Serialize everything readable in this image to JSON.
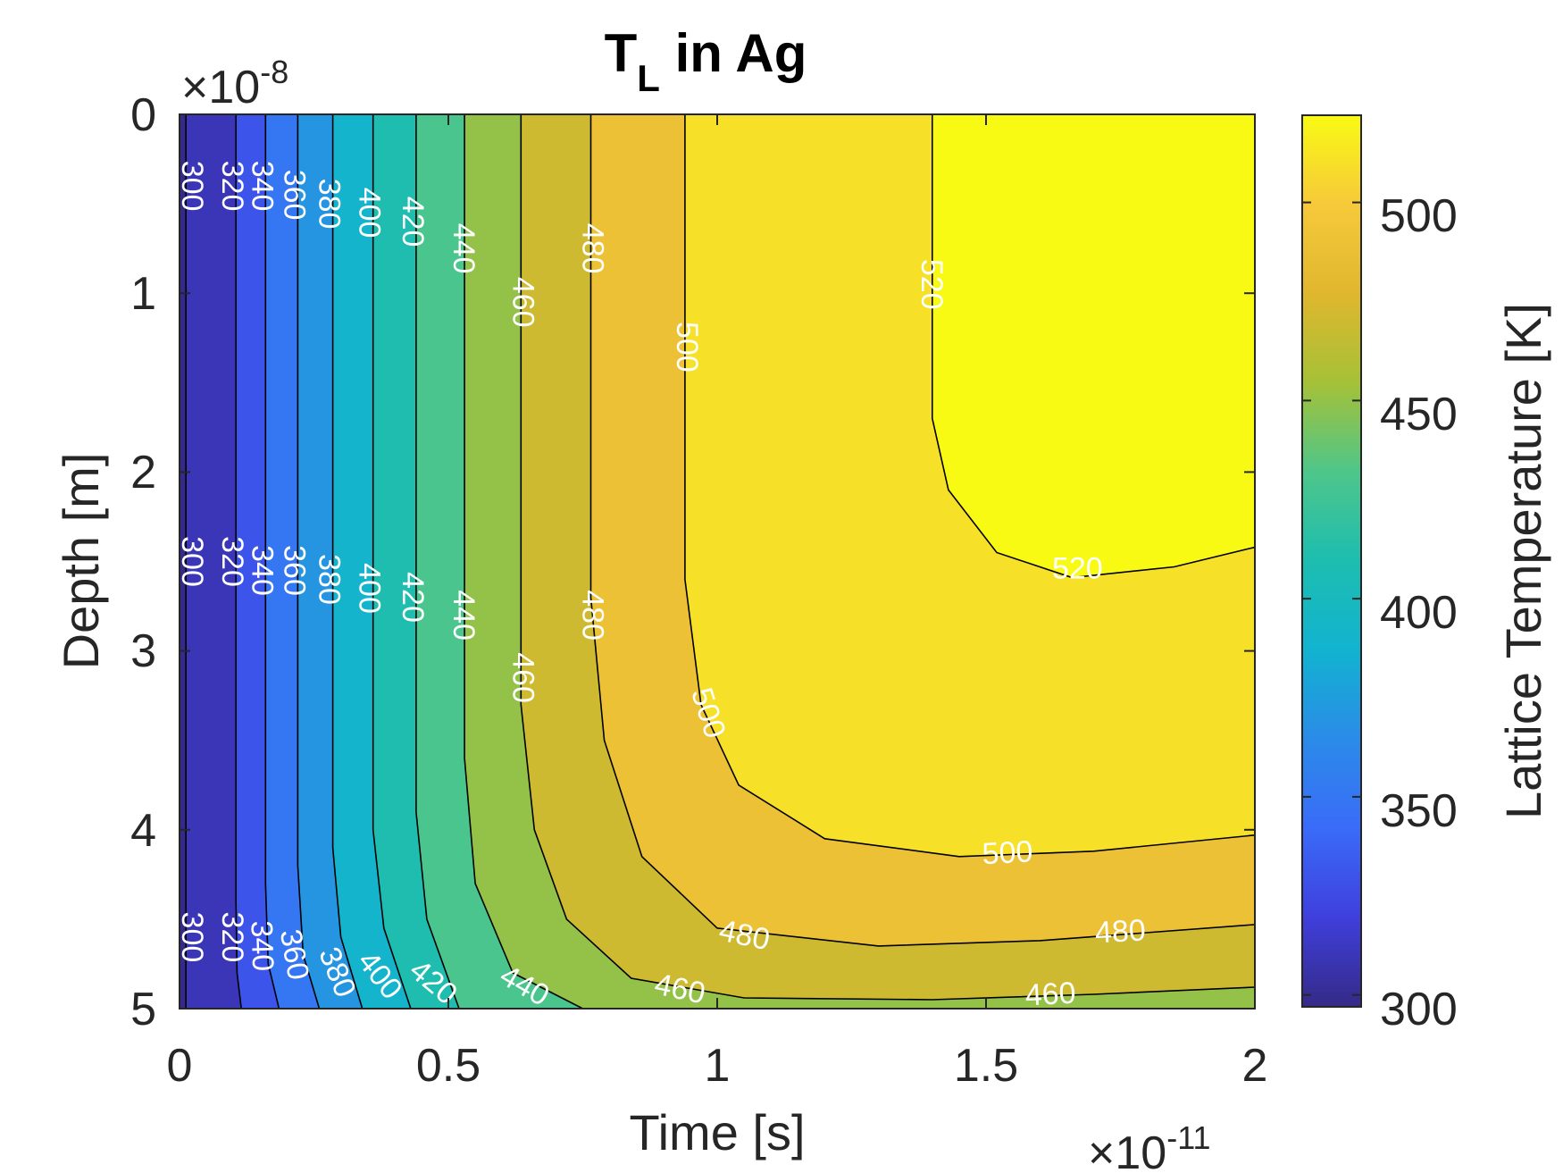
{
  "chart_data": {
    "type": "contour",
    "title": "T",
    "title_sub": "L",
    "title_rest": " in Ag",
    "xlabel": "Time [s]",
    "ylabel": "Depth [m]",
    "colorbar_label": "Lattice Temperature [K]",
    "x_multiplier": "×10",
    "x_exponent": "-11",
    "y_multiplier": "×10",
    "y_exponent": "-8",
    "xlim": [
      0,
      2
    ],
    "ylim": [
      0,
      5
    ],
    "y_reversed": true,
    "x_ticks": [
      "0",
      "0.5",
      "1",
      "1.5",
      "2"
    ],
    "y_ticks": [
      "0",
      "1",
      "2",
      "3",
      "4",
      "5"
    ],
    "colorbar_range": [
      297,
      522
    ],
    "colorbar_ticks": [
      "300",
      "350",
      "400",
      "450",
      "500"
    ],
    "colormap": "parula",
    "levels": [
      300,
      320,
      340,
      360,
      380,
      400,
      420,
      440,
      460,
      480,
      500,
      520
    ],
    "contours": [
      {
        "level": 300,
        "points": [
          [
            0.012,
            0
          ],
          [
            0.012,
            5
          ]
        ]
      },
      {
        "level": 320,
        "points": [
          [
            0.105,
            0
          ],
          [
            0.105,
            4.4
          ],
          [
            0.107,
            4.8
          ],
          [
            0.115,
            5
          ]
        ]
      },
      {
        "level": 340,
        "points": [
          [
            0.16,
            0
          ],
          [
            0.16,
            4.3
          ],
          [
            0.165,
            4.75
          ],
          [
            0.185,
            5
          ]
        ]
      },
      {
        "level": 360,
        "points": [
          [
            0.22,
            0
          ],
          [
            0.22,
            4.2
          ],
          [
            0.23,
            4.7
          ],
          [
            0.26,
            5
          ]
        ]
      },
      {
        "level": 380,
        "points": [
          [
            0.285,
            0
          ],
          [
            0.285,
            4.1
          ],
          [
            0.3,
            4.6
          ],
          [
            0.34,
            5
          ]
        ]
      },
      {
        "level": 400,
        "points": [
          [
            0.36,
            0
          ],
          [
            0.36,
            4.0
          ],
          [
            0.38,
            4.55
          ],
          [
            0.43,
            5
          ]
        ]
      },
      {
        "level": 420,
        "points": [
          [
            0.44,
            0
          ],
          [
            0.44,
            3.9
          ],
          [
            0.46,
            4.5
          ],
          [
            0.52,
            5
          ]
        ]
      },
      {
        "level": 440,
        "points": [
          [
            0.53,
            0
          ],
          [
            0.53,
            3.6
          ],
          [
            0.55,
            4.3
          ],
          [
            0.62,
            4.8
          ],
          [
            0.75,
            5
          ]
        ]
      },
      {
        "level": 460,
        "points": [
          [
            0.635,
            0
          ],
          [
            0.635,
            3.3
          ],
          [
            0.66,
            4.0
          ],
          [
            0.72,
            4.5
          ],
          [
            0.84,
            4.83
          ],
          [
            1.05,
            4.94
          ],
          [
            1.4,
            4.95
          ],
          [
            1.7,
            4.92
          ],
          [
            2.0,
            4.88
          ]
        ]
      },
      {
        "level": 480,
        "points": [
          [
            0.765,
            0
          ],
          [
            0.765,
            2.7
          ],
          [
            0.79,
            3.5
          ],
          [
            0.86,
            4.15
          ],
          [
            1.0,
            4.55
          ],
          [
            1.3,
            4.65
          ],
          [
            1.6,
            4.62
          ],
          [
            2.0,
            4.53
          ]
        ]
      },
      {
        "level": 500,
        "points": [
          [
            0.94,
            0
          ],
          [
            0.94,
            2.6
          ],
          [
            0.97,
            3.3
          ],
          [
            1.04,
            3.75
          ],
          [
            1.2,
            4.05
          ],
          [
            1.45,
            4.15
          ],
          [
            1.7,
            4.12
          ],
          [
            2.0,
            4.03
          ]
        ]
      },
      {
        "level": 520,
        "points": [
          [
            1.4,
            0
          ],
          [
            1.4,
            1.7
          ],
          [
            1.43,
            2.1
          ],
          [
            1.52,
            2.45
          ],
          [
            1.66,
            2.59
          ],
          [
            1.85,
            2.53
          ],
          [
            2.0,
            2.42
          ]
        ]
      }
    ],
    "contour_labels": [
      {
        "text": "300",
        "x": 0.02,
        "y": 0.4,
        "angle": 90
      },
      {
        "text": "320",
        "x": 0.095,
        "y": 0.4,
        "angle": 90
      },
      {
        "text": "340",
        "x": 0.15,
        "y": 0.4,
        "angle": 90
      },
      {
        "text": "360",
        "x": 0.21,
        "y": 0.45,
        "angle": 90
      },
      {
        "text": "380",
        "x": 0.275,
        "y": 0.5,
        "angle": 90
      },
      {
        "text": "400",
        "x": 0.35,
        "y": 0.55,
        "angle": 90
      },
      {
        "text": "420",
        "x": 0.43,
        "y": 0.6,
        "angle": 90
      },
      {
        "text": "440",
        "x": 0.525,
        "y": 0.75,
        "angle": 90
      },
      {
        "text": "460",
        "x": 0.635,
        "y": 1.05,
        "angle": 90
      },
      {
        "text": "480",
        "x": 0.765,
        "y": 0.75,
        "angle": 90
      },
      {
        "text": "500",
        "x": 0.94,
        "y": 1.3,
        "angle": 90
      },
      {
        "text": "520",
        "x": 1.395,
        "y": 0.95,
        "angle": 90
      },
      {
        "text": "300",
        "x": 0.02,
        "y": 2.5,
        "angle": 90
      },
      {
        "text": "320",
        "x": 0.095,
        "y": 2.5,
        "angle": 90
      },
      {
        "text": "340",
        "x": 0.15,
        "y": 2.55,
        "angle": 90
      },
      {
        "text": "360",
        "x": 0.21,
        "y": 2.55,
        "angle": 90
      },
      {
        "text": "380",
        "x": 0.275,
        "y": 2.6,
        "angle": 90
      },
      {
        "text": "400",
        "x": 0.35,
        "y": 2.65,
        "angle": 90
      },
      {
        "text": "420",
        "x": 0.43,
        "y": 2.7,
        "angle": 90
      },
      {
        "text": "440",
        "x": 0.525,
        "y": 2.8,
        "angle": 90
      },
      {
        "text": "460",
        "x": 0.635,
        "y": 3.15,
        "angle": 90
      },
      {
        "text": "480",
        "x": 0.765,
        "y": 2.8,
        "angle": 90
      },
      {
        "text": "500",
        "x": 0.98,
        "y": 3.35,
        "angle": 72
      },
      {
        "text": "520",
        "x": 1.67,
        "y": 2.55,
        "angle": 0
      },
      {
        "text": "300",
        "x": 0.02,
        "y": 4.6,
        "angle": 90
      },
      {
        "text": "320",
        "x": 0.095,
        "y": 4.6,
        "angle": 90
      },
      {
        "text": "340",
        "x": 0.15,
        "y": 4.65,
        "angle": 88
      },
      {
        "text": "360",
        "x": 0.21,
        "y": 4.7,
        "angle": 80
      },
      {
        "text": "380",
        "x": 0.29,
        "y": 4.8,
        "angle": 68
      },
      {
        "text": "400",
        "x": 0.37,
        "y": 4.82,
        "angle": 52
      },
      {
        "text": "420",
        "x": 0.47,
        "y": 4.86,
        "angle": 40
      },
      {
        "text": "440",
        "x": 0.64,
        "y": 4.88,
        "angle": 30
      },
      {
        "text": "460",
        "x": 0.93,
        "y": 4.9,
        "angle": 12
      },
      {
        "text": "480",
        "x": 1.05,
        "y": 4.6,
        "angle": 12
      },
      {
        "text": "500",
        "x": 1.54,
        "y": 4.14,
        "angle": -3
      },
      {
        "text": "480",
        "x": 1.75,
        "y": 4.58,
        "angle": -3
      },
      {
        "text": "460",
        "x": 1.62,
        "y": 4.93,
        "angle": -3
      }
    ]
  }
}
